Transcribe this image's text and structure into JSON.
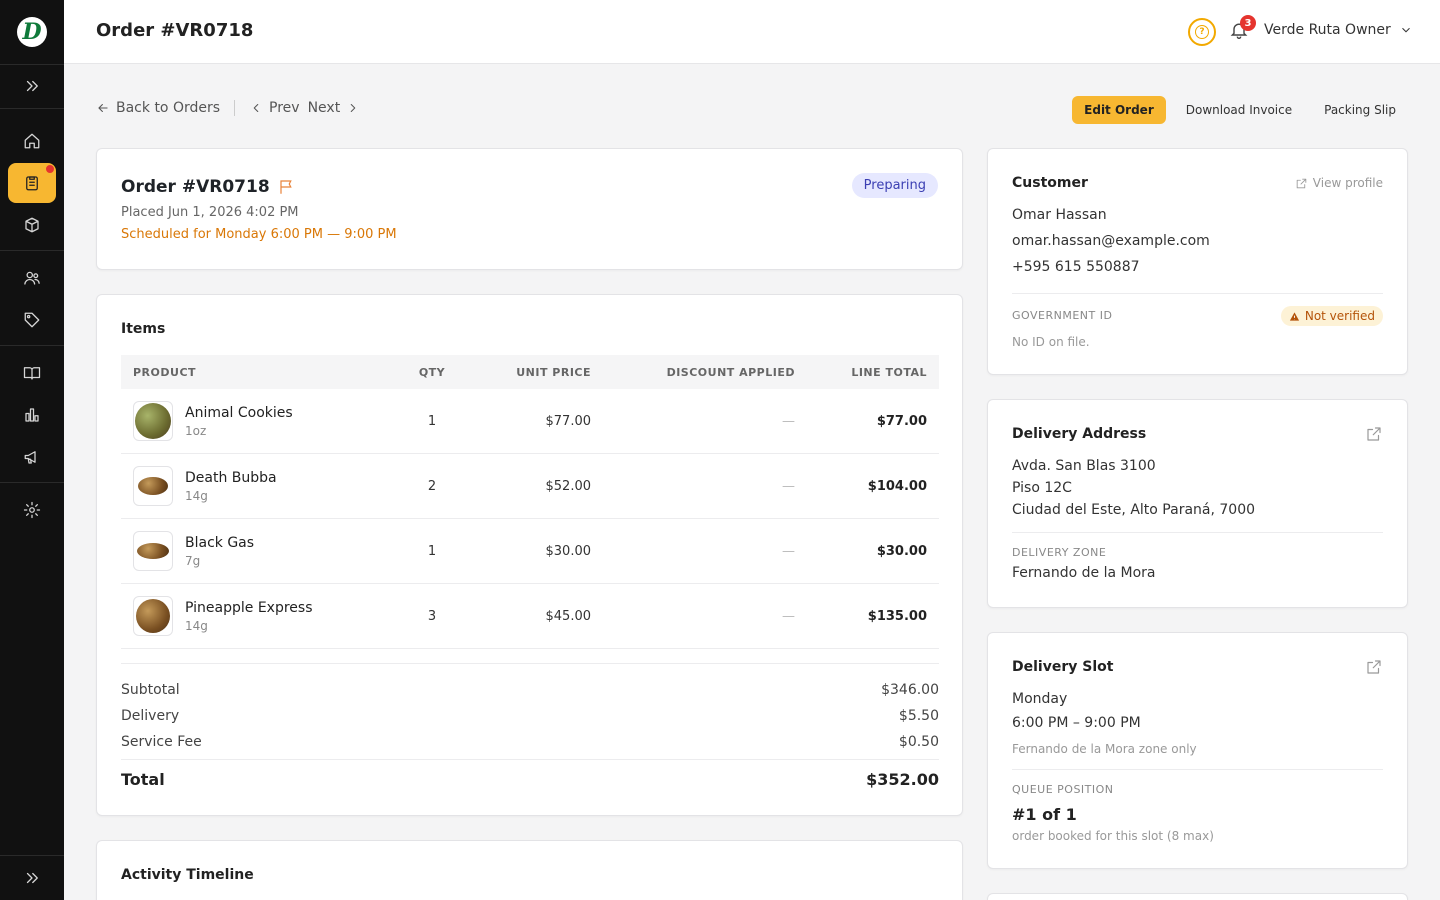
{
  "header": {
    "title": "Order #VR0718",
    "user_name": "Verde Ruta Owner",
    "notification_count": "3"
  },
  "subnav": {
    "back": "Back to Orders",
    "prev": "Prev",
    "next": "Next"
  },
  "actions": {
    "edit": "Edit Order",
    "invoice": "Download Invoice",
    "packing": "Packing Slip"
  },
  "order": {
    "title": "Order #VR0718",
    "placed": "Placed Jun 1, 2026 4:02 PM",
    "scheduled": "Scheduled for Monday 6:00 PM — 9:00 PM",
    "status": "Preparing"
  },
  "items": {
    "heading": "Items",
    "columns": [
      "PRODUCT",
      "QTY",
      "UNIT PRICE",
      "DISCOUNT APPLIED",
      "LINE TOTAL"
    ],
    "rows": [
      {
        "name": "Animal Cookies",
        "size": "1oz",
        "qty": "1",
        "price": "$77.00",
        "discount": "—",
        "total": "$77.00"
      },
      {
        "name": "Death Bubba",
        "size": "14g",
        "qty": "2",
        "price": "$52.00",
        "discount": "—",
        "total": "$104.00"
      },
      {
        "name": "Black Gas",
        "size": "7g",
        "qty": "1",
        "price": "$30.00",
        "discount": "—",
        "total": "$30.00"
      },
      {
        "name": "Pineapple Express",
        "size": "14g",
        "qty": "3",
        "price": "$45.00",
        "discount": "—",
        "total": "$135.00"
      }
    ],
    "subtotal_label": "Subtotal",
    "subtotal": "$346.00",
    "delivery_label": "Delivery",
    "delivery": "$5.50",
    "fee_label": "Service Fee",
    "fee": "$0.50",
    "total_label": "Total",
    "total": "$352.00"
  },
  "activity": {
    "heading": "Activity Timeline"
  },
  "customer": {
    "heading": "Customer",
    "view_profile": "View profile",
    "name": "Omar Hassan",
    "email": "omar.hassan@example.com",
    "phone": "+595 615 550887",
    "gov_id_label": "GOVERNMENT ID",
    "gov_id_status": "Not verified",
    "gov_id_note": "No ID on file."
  },
  "address": {
    "heading": "Delivery Address",
    "line1": "Avda. San Blas 3100",
    "line2": "Piso 12C",
    "line3": "Ciudad del Este, Alto Paraná, 7000",
    "zone_label": "DELIVERY ZONE",
    "zone": "Fernando de la Mora"
  },
  "slot": {
    "heading": "Delivery Slot",
    "day": "Monday",
    "time": "6:00 PM – 9:00 PM",
    "note": "Fernando de la Mora zone only",
    "queue_label": "QUEUE POSITION",
    "queue": "#1 of 1",
    "queue_note": "order booked for this slot (8 max)"
  },
  "colors": {
    "accent": "#f7b731",
    "sidebar": "#111111",
    "status_bg": "#e6e8ff",
    "warn": "#b45309"
  }
}
